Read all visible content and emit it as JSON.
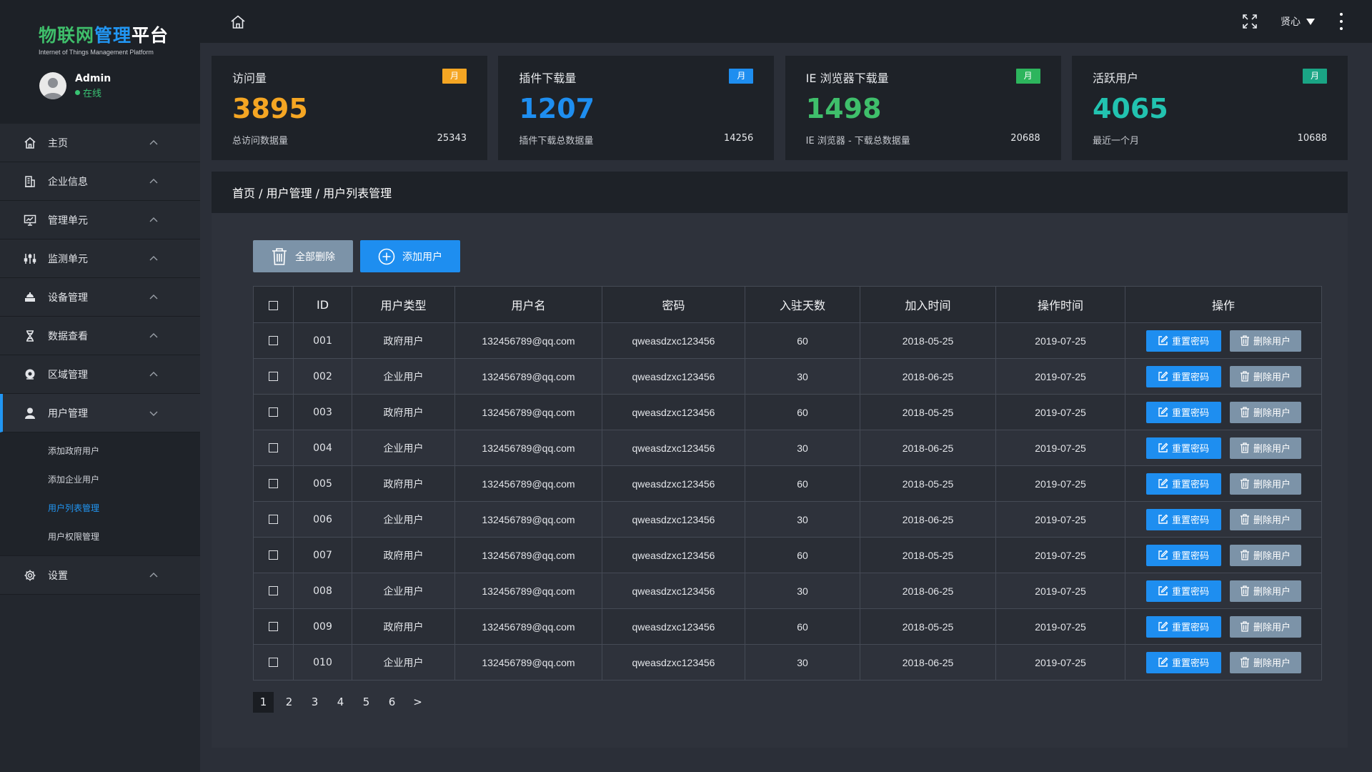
{
  "sidebar": {
    "logo": {
      "part1": "物联网",
      "part2": "管理",
      "part3": "平台",
      "subtitle": "Internet of Things Management Platform"
    },
    "user": {
      "name": "Admin",
      "status": "在线"
    },
    "menu": [
      {
        "label": "主页",
        "icon": "home-icon"
      },
      {
        "label": "企业信息",
        "icon": "building-icon"
      },
      {
        "label": "管理单元",
        "icon": "monitor-chart-icon"
      },
      {
        "label": "监测单元",
        "icon": "sliders-icon"
      },
      {
        "label": "设备管理",
        "icon": "device-icon"
      },
      {
        "label": "数据查看",
        "icon": "hourglass-icon"
      },
      {
        "label": "区域管理",
        "icon": "location-icon"
      },
      {
        "label": "用户管理",
        "icon": "user-icon"
      }
    ],
    "submenu": [
      "添加政府用户",
      "添加企业用户",
      "用户列表管理",
      "用户权限管理"
    ],
    "settings": {
      "label": "设置",
      "icon": "gear-icon"
    }
  },
  "topbar": {
    "username": "贤心"
  },
  "cards": [
    {
      "title": "访问量",
      "badge": "月",
      "badge_color": "#f5a623",
      "value": "3895",
      "value_color": "#f5a623",
      "sub": "总访问数据量",
      "total": "25343"
    },
    {
      "title": "插件下载量",
      "badge": "月",
      "badge_color": "#1e8ef0",
      "value": "1207",
      "value_color": "#1e8ef0",
      "sub": "插件下载总数据量",
      "total": "14256"
    },
    {
      "title": "IE 浏览器下载量",
      "badge": "月",
      "badge_color": "#2db55d",
      "value": "1498",
      "value_color": "#3fbf6b",
      "sub": "IE 浏览器 - 下载总数据量",
      "total": "20688"
    },
    {
      "title": "活跃用户",
      "badge": "月",
      "badge_color": "#1aa585",
      "value": "4065",
      "value_color": "#22c3b0",
      "sub": "最近一个月",
      "total": "10688"
    }
  ],
  "breadcrumb": "首页 / 用户管理 / 用户列表管理",
  "toolbar": {
    "delete_all": "全部删除",
    "add_user": "添加用户"
  },
  "table": {
    "headers": [
      "ID",
      "用户类型",
      "用户名",
      "密码",
      "入驻天数",
      "加入时间",
      "操作时间",
      "操作"
    ],
    "reset_label": "重置密码",
    "delete_label": "删除用户",
    "rows": [
      {
        "id": "001",
        "type": "政府用户",
        "username": "132456789@qq.com",
        "password": "qweasdzxc123456",
        "days": "60",
        "joined": "2018-05-25",
        "updated": "2019-07-25"
      },
      {
        "id": "002",
        "type": "企业用户",
        "username": "132456789@qq.com",
        "password": "qweasdzxc123456",
        "days": "30",
        "joined": "2018-06-25",
        "updated": "2019-07-25"
      },
      {
        "id": "003",
        "type": "政府用户",
        "username": "132456789@qq.com",
        "password": "qweasdzxc123456",
        "days": "60",
        "joined": "2018-05-25",
        "updated": "2019-07-25"
      },
      {
        "id": "004",
        "type": "企业用户",
        "username": "132456789@qq.com",
        "password": "qweasdzxc123456",
        "days": "30",
        "joined": "2018-06-25",
        "updated": "2019-07-25"
      },
      {
        "id": "005",
        "type": "政府用户",
        "username": "132456789@qq.com",
        "password": "qweasdzxc123456",
        "days": "60",
        "joined": "2018-05-25",
        "updated": "2019-07-25"
      },
      {
        "id": "006",
        "type": "企业用户",
        "username": "132456789@qq.com",
        "password": "qweasdzxc123456",
        "days": "30",
        "joined": "2018-06-25",
        "updated": "2019-07-25"
      },
      {
        "id": "007",
        "type": "政府用户",
        "username": "132456789@qq.com",
        "password": "qweasdzxc123456",
        "days": "60",
        "joined": "2018-05-25",
        "updated": "2019-07-25"
      },
      {
        "id": "008",
        "type": "企业用户",
        "username": "132456789@qq.com",
        "password": "qweasdzxc123456",
        "days": "30",
        "joined": "2018-06-25",
        "updated": "2019-07-25"
      },
      {
        "id": "009",
        "type": "政府用户",
        "username": "132456789@qq.com",
        "password": "qweasdzxc123456",
        "days": "60",
        "joined": "2018-05-25",
        "updated": "2019-07-25"
      },
      {
        "id": "010",
        "type": "企业用户",
        "username": "132456789@qq.com",
        "password": "qweasdzxc123456",
        "days": "30",
        "joined": "2018-06-25",
        "updated": "2019-07-25"
      }
    ]
  },
  "pagination": {
    "pages": [
      "1",
      "2",
      "3",
      "4",
      "5",
      "6"
    ],
    "next": ">",
    "current": "1"
  }
}
